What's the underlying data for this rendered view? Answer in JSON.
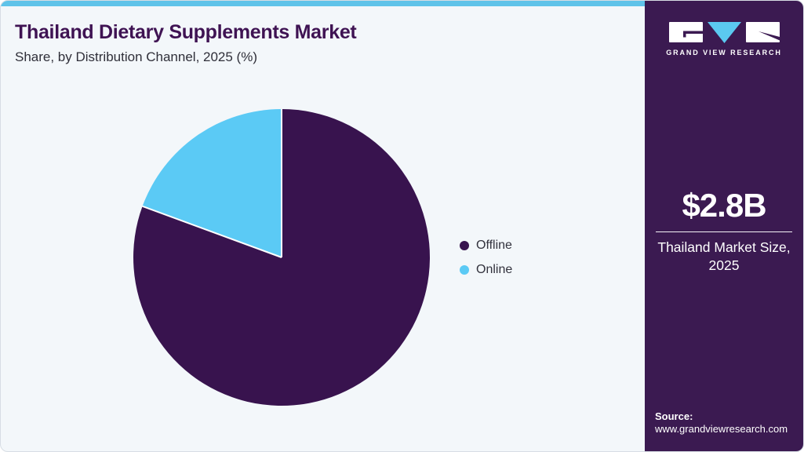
{
  "header": {
    "title": "Thailand Dietary Supplements Market",
    "subtitle": "Share, by Distribution Channel, 2025 (%)"
  },
  "chart_data": {
    "type": "pie",
    "title": "Thailand Dietary Supplements Market Share, by Distribution Channel, 2025 (%)",
    "categories": [
      "Offline",
      "Online"
    ],
    "values": [
      80.6,
      19.4
    ],
    "unit": "%",
    "colors": [
      "#38134e",
      "#5bcaf5"
    ],
    "slice_separator_color": "#ffffff",
    "start_angle": "12 o'clock",
    "direction": "clockwise",
    "legend_position": "right",
    "data_labels": false
  },
  "sidebar": {
    "logo": {
      "brand": "GRAND VIEW RESEARCH"
    },
    "market_size": {
      "value": "$2.8B",
      "label": "Thailand Market Size, 2025"
    },
    "source": {
      "heading": "Source:",
      "url": "www.grandviewresearch.com"
    }
  },
  "theme": {
    "accent_blue": "#5fc3e9",
    "panel_purple": "#3b1a51",
    "title_purple": "#3f1353",
    "card_background": "#f3f7fa"
  }
}
